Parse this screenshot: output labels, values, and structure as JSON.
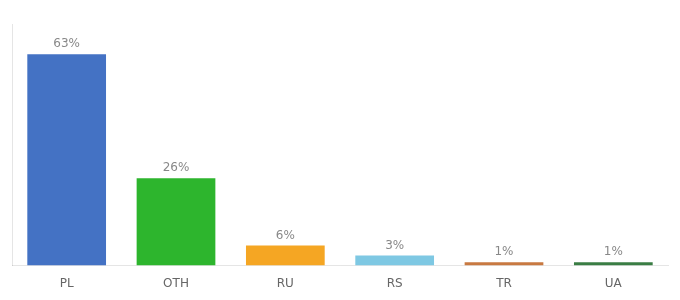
{
  "chart_data": {
    "type": "bar",
    "categories": [
      "PL",
      "OTH",
      "RU",
      "RS",
      "TR",
      "UA"
    ],
    "values": [
      63,
      26,
      6,
      3,
      1,
      1
    ],
    "value_labels": [
      "63%",
      "26%",
      "6%",
      "3%",
      "1%",
      "1%"
    ],
    "data_labels": true,
    "colors": [
      "#4472c4",
      "#2db52d",
      "#f5a623",
      "#7ec8e3",
      "#c87941",
      "#3a7d44"
    ],
    "ylim": [
      0,
      72
    ],
    "grid": false,
    "tick_labels": "x"
  }
}
